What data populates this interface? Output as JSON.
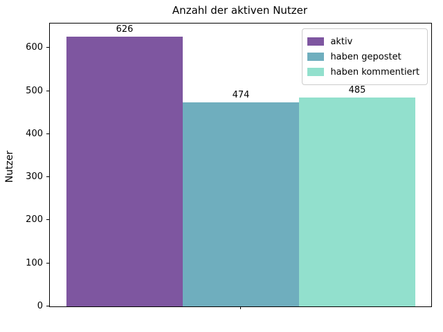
{
  "chart_data": {
    "type": "bar",
    "title": "Anzahl der aktiven Nutzer",
    "xlabel": "",
    "ylabel": "Nutzer",
    "series": [
      {
        "name": "aktiv",
        "value": 626,
        "color": "#7e56a0"
      },
      {
        "name": "haben gepostet",
        "value": 474,
        "color": "#6faebe"
      },
      {
        "name": "haben kommentiert",
        "value": 485,
        "color": "#92e0cd"
      }
    ],
    "bar_value_labels": [
      "626",
      "474",
      "485"
    ],
    "yticks": [
      0,
      100,
      200,
      300,
      400,
      500,
      600
    ],
    "ylim": [
      0,
      657
    ],
    "grid": false,
    "legend_position": "upper right",
    "background_color": "#ffffff",
    "spine_color": "#000000"
  }
}
